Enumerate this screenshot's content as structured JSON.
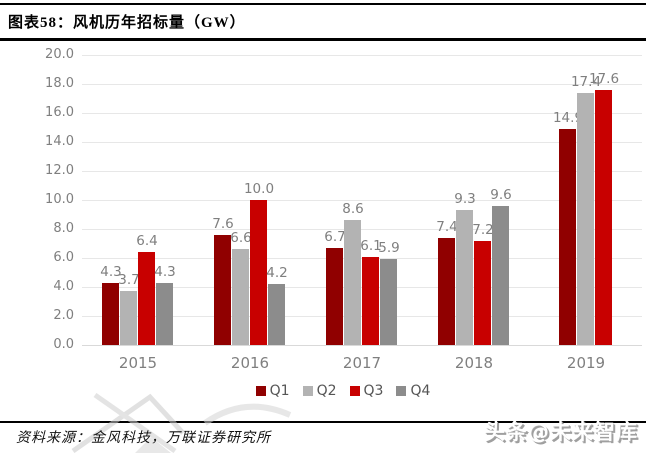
{
  "header": {
    "title": "图表58：风机历年招标量（GW）"
  },
  "chart_data": {
    "type": "bar",
    "title": "风机历年招标量（GW）",
    "figure_label": "图表58",
    "categories": [
      "2015",
      "2016",
      "2017",
      "2018",
      "2019"
    ],
    "series": [
      {
        "name": "Q1",
        "color": "#900000",
        "values": [
          4.3,
          7.6,
          6.7,
          7.4,
          14.9
        ]
      },
      {
        "name": "Q2",
        "color": "#b3b3b3",
        "values": [
          3.7,
          6.6,
          8.6,
          9.3,
          17.4
        ]
      },
      {
        "name": "Q3",
        "color": "#c80000",
        "values": [
          6.4,
          10.0,
          6.1,
          7.2,
          17.6
        ]
      },
      {
        "name": "Q4",
        "color": "#8c8c8c",
        "values": [
          4.3,
          4.2,
          5.9,
          9.6,
          null
        ]
      }
    ],
    "ylim": [
      0,
      20
    ],
    "ytick_step": 2,
    "ytick_labels": [
      "0.0",
      "2.0",
      "4.0",
      "6.0",
      "8.0",
      "10.0",
      "12.0",
      "14.0",
      "16.0",
      "18.0",
      "20.0"
    ],
    "xlabel": "",
    "ylabel": "",
    "grid": true,
    "legend_position": "bottom",
    "value_labels": true,
    "value_label_color": "#7f7f7f"
  },
  "footer": {
    "source": "资料来源：金风科技，万联证券研究所",
    "watermark": "头条@未来智库"
  }
}
